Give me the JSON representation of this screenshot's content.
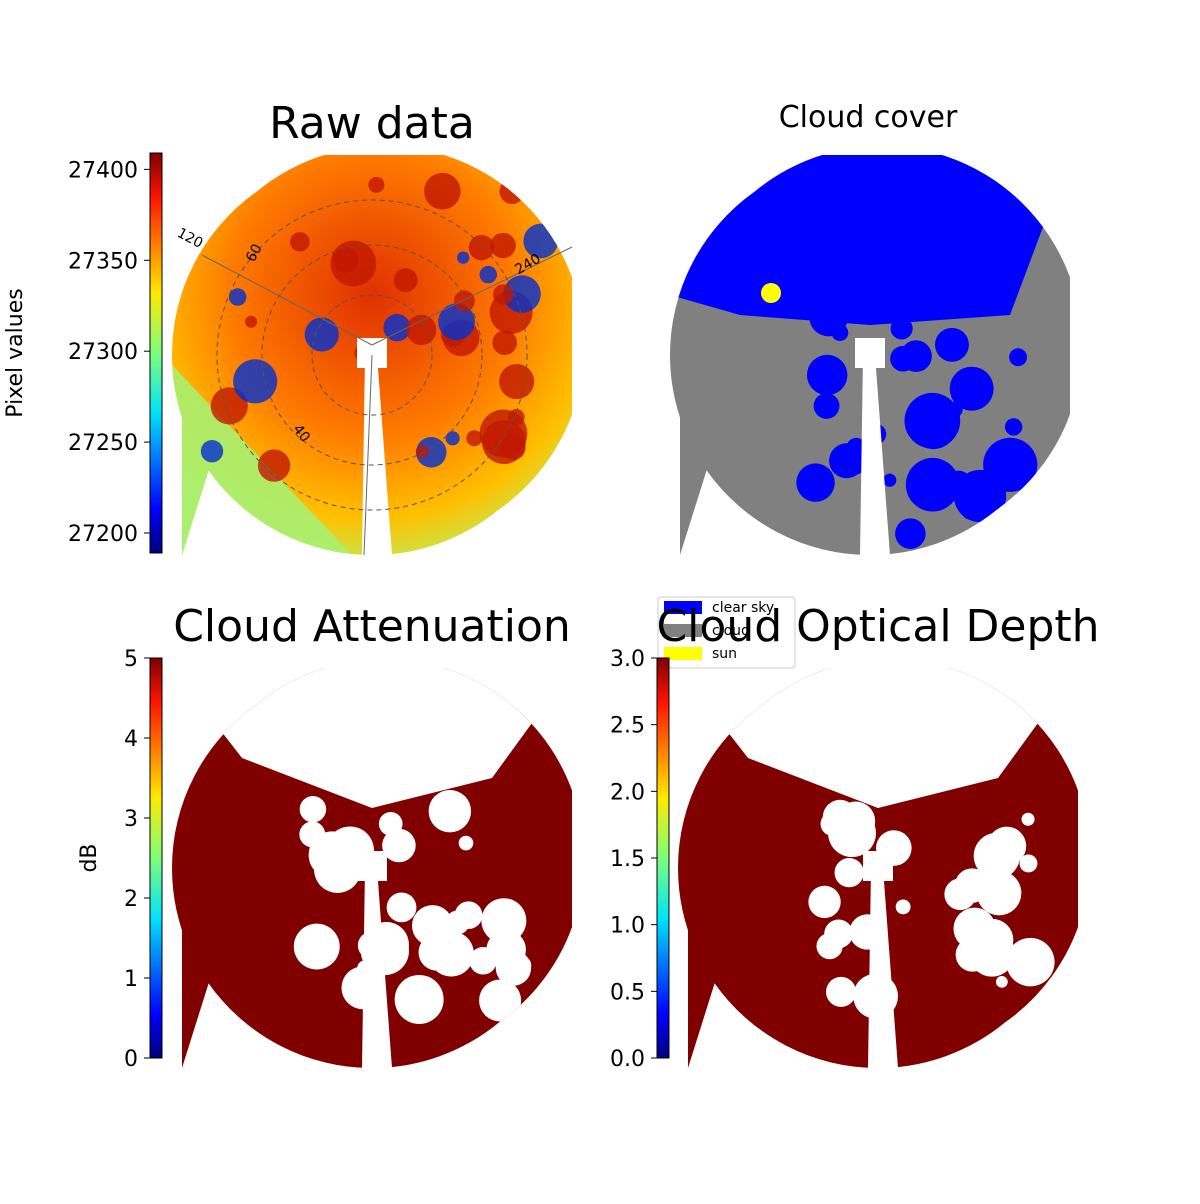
{
  "panels": [
    {
      "title": "Raw data",
      "colorbar": {
        "label": "Pixel values",
        "lim": [
          27189,
          27409
        ],
        "ticks": [
          27200,
          27250,
          27300,
          27350,
          27400
        ]
      },
      "annotations": [
        "120",
        "60",
        "240",
        "40"
      ]
    },
    {
      "title": "Cloud cover",
      "legend": [
        {
          "name": "clear sky",
          "color": "#0000ff"
        },
        {
          "name": "cloud",
          "color": "#808080"
        },
        {
          "name": "sun",
          "color": "#ffff00"
        }
      ]
    },
    {
      "title": "Cloud Attenuation",
      "colorbar": {
        "label": "dB",
        "lim": [
          0,
          5
        ],
        "ticks": [
          0,
          1,
          2,
          3,
          4,
          5
        ]
      }
    },
    {
      "title": "Cloud Optical Depth",
      "colorbar": {
        "lim": [
          0,
          3
        ],
        "ticks": [
          {
            "value": 0,
            "label": "0.0"
          },
          0.5,
          {
            "value": 1,
            "label": "1.0"
          },
          1.5,
          {
            "value": 2,
            "label": "2.0"
          },
          2.5,
          {
            "value": 3,
            "label": "3.0"
          }
        ]
      }
    }
  ]
}
